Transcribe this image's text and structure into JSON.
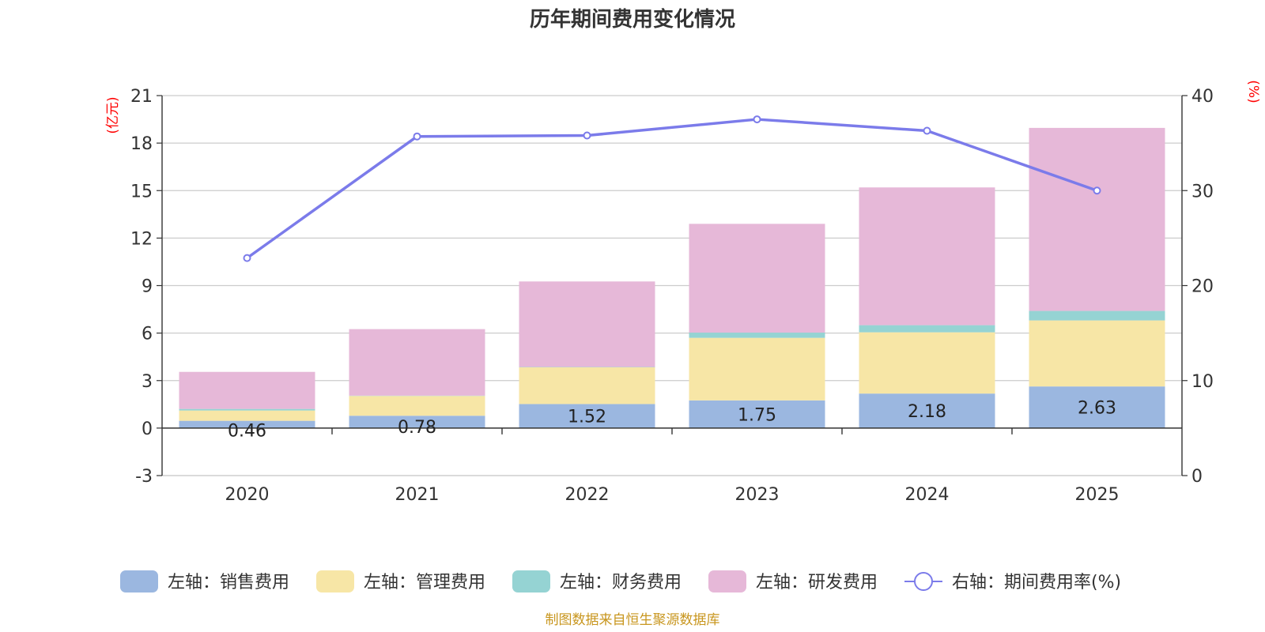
{
  "chart_data": {
    "type": "bar",
    "title": "历年期间费用变化情况",
    "categories": [
      "2020",
      "2021",
      "2022",
      "2023",
      "2024",
      "2025"
    ],
    "left_axis": {
      "unit": "(亿元)",
      "ylim": [
        -3,
        21
      ],
      "ticks": [
        "21",
        "18",
        "15",
        "12",
        "9",
        "6",
        "3",
        "0",
        "-3"
      ]
    },
    "right_axis": {
      "unit": "(%)",
      "ylim": [
        0,
        40
      ],
      "ticks": [
        "40",
        "30",
        "20",
        "10",
        "0"
      ]
    },
    "series": [
      {
        "name": "左轴：销售费用",
        "type": "bar",
        "stack": "left",
        "color": "#9bb7e0",
        "values": [
          0.46,
          0.78,
          1.52,
          1.75,
          2.18,
          2.63
        ],
        "labels": [
          "0.46",
          "0.78",
          "1.52",
          "1.75",
          "2.18",
          "2.63"
        ]
      },
      {
        "name": "左轴：管理费用",
        "type": "bar",
        "stack": "left",
        "color": "#f7e6a6",
        "values": [
          0.65,
          1.25,
          2.32,
          3.95,
          3.87,
          4.17
        ]
      },
      {
        "name": "左轴：财务费用",
        "type": "bar",
        "stack": "left",
        "color": "#95d3d3",
        "values": [
          0.1,
          0.02,
          0.02,
          0.33,
          0.45,
          0.6
        ]
      },
      {
        "name": "左轴：研发费用",
        "type": "bar",
        "stack": "left",
        "color": "#e6b8d8",
        "values": [
          2.34,
          4.2,
          5.4,
          6.87,
          8.7,
          11.56
        ]
      },
      {
        "name": "右轴：期间费用率(%)",
        "type": "line",
        "axis": "right",
        "color": "#7b7bea",
        "values": [
          22.9,
          35.7,
          35.8,
          37.5,
          36.3,
          30.0
        ]
      }
    ],
    "legend_position": "bottom",
    "grid": true
  },
  "source_note": "制图数据来自恒生聚源数据库"
}
